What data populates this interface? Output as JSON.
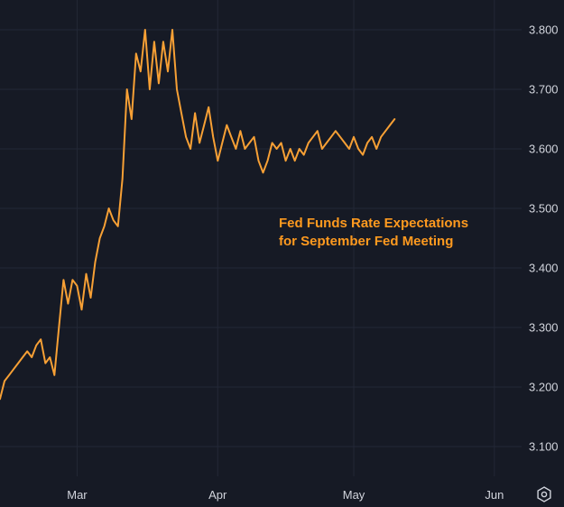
{
  "colors": {
    "background": "#161a25",
    "grid": "#232836",
    "line": "#f7a035",
    "axis_text": "#d1d4dc",
    "annotation": "#ff9a1f"
  },
  "toolbar": {
    "settings_icon": "gear-icon"
  },
  "chart_data": {
    "type": "line",
    "title": "",
    "annotation_lines": [
      "Fed Funds Rate Expectations",
      "for September Fed Meeting"
    ],
    "xlabel": "",
    "ylabel": "",
    "ylim": [
      3.05,
      3.85
    ],
    "xlim": [
      "2025-02-12",
      "2025-06-07"
    ],
    "y_ticks": [
      3.1,
      3.2,
      3.3,
      3.4,
      3.5,
      3.6,
      3.7,
      3.8
    ],
    "y_tick_labels": [
      "3.100",
      "3.200",
      "3.300",
      "3.400",
      "3.500",
      "3.600",
      "3.700",
      "3.800"
    ],
    "x_ticks": [
      "2025-03-01",
      "2025-04-01",
      "2025-05-01",
      "2025-06-01"
    ],
    "x_tick_labels": [
      "Mar",
      "Apr",
      "May",
      "Jun"
    ],
    "grid": true,
    "series": [
      {
        "x": [
          "2025-02-12",
          "2025-02-13",
          "2025-02-14",
          "2025-02-15",
          "2025-02-16",
          "2025-02-17",
          "2025-02-18",
          "2025-02-19",
          "2025-02-20",
          "2025-02-21",
          "2025-02-22",
          "2025-02-23",
          "2025-02-24",
          "2025-02-25",
          "2025-02-26",
          "2025-02-27",
          "2025-02-28",
          "2025-03-01",
          "2025-03-02",
          "2025-03-03",
          "2025-03-04",
          "2025-03-05",
          "2025-03-06",
          "2025-03-07",
          "2025-03-08",
          "2025-03-09",
          "2025-03-10",
          "2025-03-11",
          "2025-03-12",
          "2025-03-13",
          "2025-03-14",
          "2025-03-15",
          "2025-03-16",
          "2025-03-17",
          "2025-03-18",
          "2025-03-19",
          "2025-03-20",
          "2025-03-21",
          "2025-03-22",
          "2025-03-23",
          "2025-03-24",
          "2025-03-25",
          "2025-03-26",
          "2025-03-27",
          "2025-03-28",
          "2025-03-29",
          "2025-03-30",
          "2025-03-31",
          "2025-04-01",
          "2025-04-02",
          "2025-04-03",
          "2025-04-04",
          "2025-04-05",
          "2025-04-06",
          "2025-04-07",
          "2025-04-08",
          "2025-04-09",
          "2025-04-10",
          "2025-04-11",
          "2025-04-12",
          "2025-04-13",
          "2025-04-14",
          "2025-04-15",
          "2025-04-16",
          "2025-04-17",
          "2025-04-18",
          "2025-04-19",
          "2025-04-20",
          "2025-04-21",
          "2025-04-22",
          "2025-04-23",
          "2025-04-24",
          "2025-04-25",
          "2025-04-26",
          "2025-04-27",
          "2025-04-28",
          "2025-04-29",
          "2025-04-30",
          "2025-05-01",
          "2025-05-02",
          "2025-05-03",
          "2025-05-04",
          "2025-05-05",
          "2025-05-06",
          "2025-05-07",
          "2025-05-08",
          "2025-05-09",
          "2025-05-10"
        ],
        "values": [
          3.18,
          3.21,
          3.22,
          3.23,
          3.24,
          3.25,
          3.26,
          3.25,
          3.27,
          3.28,
          3.24,
          3.25,
          3.22,
          3.3,
          3.38,
          3.34,
          3.38,
          3.37,
          3.33,
          3.39,
          3.35,
          3.41,
          3.45,
          3.47,
          3.5,
          3.48,
          3.47,
          3.55,
          3.7,
          3.65,
          3.76,
          3.73,
          3.8,
          3.7,
          3.78,
          3.71,
          3.78,
          3.73,
          3.8,
          3.7,
          3.66,
          3.62,
          3.6,
          3.66,
          3.61,
          3.64,
          3.67,
          3.62,
          3.58,
          3.61,
          3.64,
          3.62,
          3.6,
          3.63,
          3.6,
          3.61,
          3.62,
          3.58,
          3.56,
          3.58,
          3.61,
          3.6,
          3.61,
          3.58,
          3.6,
          3.58,
          3.6,
          3.59,
          3.61,
          3.62,
          3.63,
          3.6,
          3.61,
          3.62,
          3.63,
          3.62,
          3.61,
          3.6,
          3.62,
          3.6,
          3.59,
          3.61,
          3.62,
          3.6,
          3.62,
          3.63,
          3.64,
          3.65
        ]
      }
    ]
  }
}
